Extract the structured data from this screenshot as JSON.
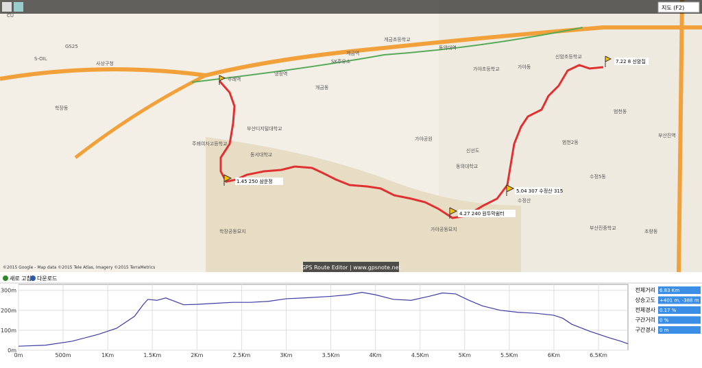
{
  "toolbar": {
    "map_button": "지도 (F2)",
    "refresh": "새로 고침",
    "download": "다운로드"
  },
  "map": {
    "watermark": "GPS Route Editor | www.gpsnote.net",
    "copyright": "©2015 Google - Map data ©2015 Tele Atlas, Imagery ©2015 TerraMetrics",
    "waypoints": [
      "7.22 8 신암집",
      "1.45 250 삼운정",
      "4.27 240 원두막쉼터",
      "5.04 307 수정산 315"
    ],
    "labels": [
      "주례역",
      "냉정역",
      "개금역",
      "동의대역",
      "부산진역",
      "SK주유소",
      "S-OIL",
      "GS25",
      "CU",
      "동의대학교",
      "부산디지털대학교",
      "가야공원",
      "신선도",
      "수정산",
      "학장공동묘지",
      "가야공동묘지",
      "주례여자고등학교",
      "가야초등학교",
      "신암초등학교",
      "부산진중학교",
      "사상구청",
      "동서대학교",
      "개금초등학교",
      "학장동",
      "범천동",
      "초량동",
      "가야동",
      "개금동",
      "범천2동",
      "수정5동"
    ]
  },
  "stats": {
    "labels": [
      "전체거리",
      "상승고도",
      "전체경사",
      "구간거리",
      "구간경사"
    ],
    "values": [
      "6.83 Km",
      "+401 m, -388 m",
      "0.17 %",
      "0 %",
      "0 m"
    ]
  },
  "chart_data": {
    "type": "line",
    "x": [
      0,
      300,
      600,
      900,
      1100,
      1300,
      1400,
      1450,
      1550,
      1650,
      1750,
      1850,
      2000,
      2200,
      2400,
      2600,
      2800,
      3000,
      3200,
      3500,
      3700,
      3850,
      4000,
      4200,
      4400,
      4600,
      4750,
      4900,
      5050,
      5200,
      5400,
      5600,
      5800,
      6000,
      6100,
      6200,
      6400,
      6600,
      6750,
      6830
    ],
    "series": [
      {
        "name": "고도",
        "color": "#3a3aa8",
        "values": [
          20,
          25,
          45,
          80,
          110,
          170,
          230,
          255,
          250,
          262,
          245,
          228,
          230,
          235,
          240,
          240,
          245,
          258,
          262,
          270,
          278,
          290,
          278,
          255,
          250,
          270,
          287,
          282,
          250,
          222,
          200,
          190,
          185,
          175,
          160,
          130,
          95,
          65,
          45,
          32
        ]
      }
    ],
    "xlim": [
      0,
      6830
    ],
    "ylim": [
      0,
      330
    ],
    "xticks": [
      {
        "value": 0,
        "label": "0m"
      },
      {
        "value": 500,
        "label": "500m"
      },
      {
        "value": 1000,
        "label": "1Km"
      },
      {
        "value": 1500,
        "label": "1.5Km"
      },
      {
        "value": 2000,
        "label": "2Km"
      },
      {
        "value": 2500,
        "label": "2.5Km"
      },
      {
        "value": 3000,
        "label": "3Km"
      },
      {
        "value": 3500,
        "label": "3.5Km"
      },
      {
        "value": 4000,
        "label": "4Km"
      },
      {
        "value": 4500,
        "label": "4.5Km"
      },
      {
        "value": 5000,
        "label": "5Km"
      },
      {
        "value": 5500,
        "label": "5.5Km"
      },
      {
        "value": 6000,
        "label": "6Km"
      },
      {
        "value": 6500,
        "label": "6.5Km"
      }
    ],
    "yticks": [
      {
        "value": 0,
        "label": "0m"
      },
      {
        "value": 100,
        "label": "100m"
      },
      {
        "value": 200,
        "label": "200m"
      },
      {
        "value": 300,
        "label": "300m"
      }
    ],
    "grid": true
  }
}
